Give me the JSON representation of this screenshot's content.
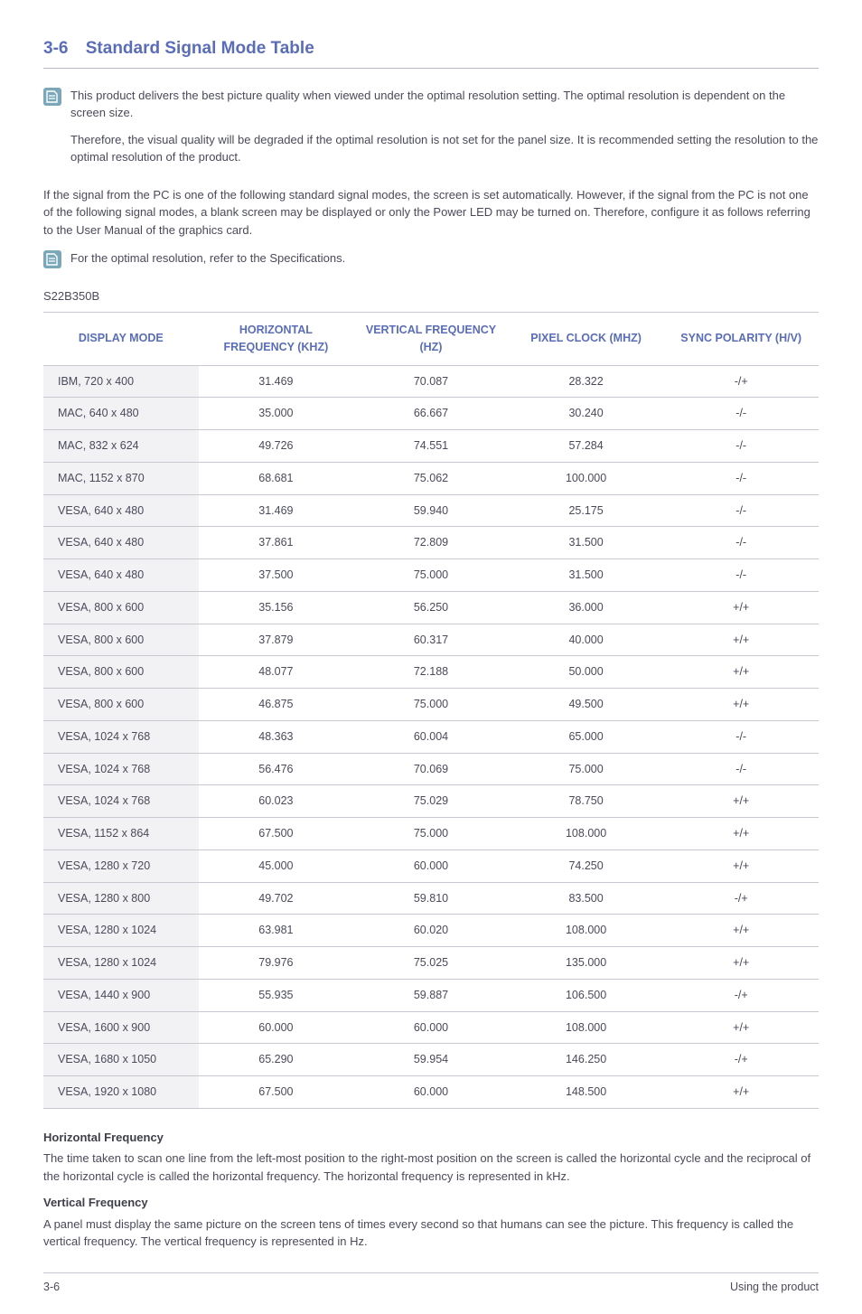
{
  "section": {
    "number": "3-6",
    "title": "Standard Signal Mode Table"
  },
  "notes": {
    "p1": "This product delivers the best picture quality when viewed under the optimal resolution setting. The optimal resolution is dependent on the screen size.",
    "p2": "Therefore, the visual quality will be degraded if the optimal resolution is not set for the panel size. It is recommended setting the resolution to the optimal resolution of the product.",
    "body": "If the signal from the PC is one of the following standard signal modes, the screen is set automatically. However, if the signal from the PC is not one of the following signal modes, a blank screen may be displayed or only the Power LED may be turned on. Therefore, configure it as follows referring to the User Manual of the graphics card.",
    "p3": "For the optimal resolution, refer to the Specifications."
  },
  "model": "S22B350B",
  "table": {
    "headers": {
      "c0": "DISPLAY MODE",
      "c1": "HORIZONTAL FREQUENCY (KHZ)",
      "c2": "VERTICAL FREQUENCY (HZ)",
      "c3": "PIXEL CLOCK (MHZ)",
      "c4": "SYNC POLARITY (H/V)"
    },
    "rows": [
      {
        "c0": "IBM, 720 x 400",
        "c1": "31.469",
        "c2": "70.087",
        "c3": "28.322",
        "c4": "-/+"
      },
      {
        "c0": "MAC, 640 x 480",
        "c1": "35.000",
        "c2": "66.667",
        "c3": "30.240",
        "c4": "-/-"
      },
      {
        "c0": "MAC, 832 x 624",
        "c1": "49.726",
        "c2": "74.551",
        "c3": "57.284",
        "c4": "-/-"
      },
      {
        "c0": "MAC, 1152 x 870",
        "c1": "68.681",
        "c2": "75.062",
        "c3": "100.000",
        "c4": "-/-"
      },
      {
        "c0": "VESA, 640 x 480",
        "c1": "31.469",
        "c2": "59.940",
        "c3": "25.175",
        "c4": "-/-"
      },
      {
        "c0": "VESA, 640 x 480",
        "c1": "37.861",
        "c2": "72.809",
        "c3": "31.500",
        "c4": "-/-"
      },
      {
        "c0": "VESA, 640 x 480",
        "c1": "37.500",
        "c2": "75.000",
        "c3": "31.500",
        "c4": "-/-"
      },
      {
        "c0": "VESA, 800 x 600",
        "c1": "35.156",
        "c2": "56.250",
        "c3": "36.000",
        "c4": "+/+"
      },
      {
        "c0": "VESA, 800 x 600",
        "c1": "37.879",
        "c2": "60.317",
        "c3": "40.000",
        "c4": "+/+"
      },
      {
        "c0": "VESA, 800 x 600",
        "c1": "48.077",
        "c2": "72.188",
        "c3": "50.000",
        "c4": "+/+"
      },
      {
        "c0": "VESA, 800 x 600",
        "c1": "46.875",
        "c2": "75.000",
        "c3": "49.500",
        "c4": "+/+"
      },
      {
        "c0": "VESA, 1024 x 768",
        "c1": "48.363",
        "c2": "60.004",
        "c3": "65.000",
        "c4": "-/-"
      },
      {
        "c0": "VESA, 1024 x 768",
        "c1": "56.476",
        "c2": "70.069",
        "c3": "75.000",
        "c4": "-/-"
      },
      {
        "c0": "VESA, 1024 x 768",
        "c1": "60.023",
        "c2": "75.029",
        "c3": "78.750",
        "c4": "+/+"
      },
      {
        "c0": "VESA, 1152 x 864",
        "c1": "67.500",
        "c2": "75.000",
        "c3": "108.000",
        "c4": "+/+"
      },
      {
        "c0": "VESA, 1280 x 720",
        "c1": "45.000",
        "c2": "60.000",
        "c3": "74.250",
        "c4": "+/+"
      },
      {
        "c0": "VESA, 1280 x 800",
        "c1": "49.702",
        "c2": "59.810",
        "c3": "83.500",
        "c4": "-/+"
      },
      {
        "c0": "VESA, 1280 x 1024",
        "c1": "63.981",
        "c2": "60.020",
        "c3": "108.000",
        "c4": "+/+"
      },
      {
        "c0": "VESA, 1280 x 1024",
        "c1": "79.976",
        "c2": "75.025",
        "c3": "135.000",
        "c4": "+/+"
      },
      {
        "c0": "VESA, 1440 x 900",
        "c1": "55.935",
        "c2": "59.887",
        "c3": "106.500",
        "c4": "-/+"
      },
      {
        "c0": "VESA, 1600 x 900",
        "c1": "60.000",
        "c2": "60.000",
        "c3": "108.000",
        "c4": "+/+"
      },
      {
        "c0": "VESA, 1680 x 1050",
        "c1": "65.290",
        "c2": "59.954",
        "c3": "146.250",
        "c4": "-/+"
      },
      {
        "c0": "VESA, 1920 x 1080",
        "c1": "67.500",
        "c2": "60.000",
        "c3": "148.500",
        "c4": "+/+"
      }
    ]
  },
  "definitions": {
    "hf_title": "Horizontal Frequency",
    "hf_text": "The time taken to scan one line from the left-most position to the right-most position on the screen is called the horizontal cycle and the reciprocal of the horizontal cycle is called the horizontal frequency. The horizontal frequency is represented in kHz.",
    "vf_title": "Vertical Frequency",
    "vf_text": "A panel must display the same picture on the screen tens of times every second so that humans can see the picture. This frequency is called the vertical frequency. The vertical frequency is represented in Hz."
  },
  "footer": {
    "left": "3-6",
    "right": "Using the product"
  },
  "colors": {
    "accent": "#5a6db8",
    "text": "#4a4a5a",
    "border": "#c8c8d0",
    "row_shade": "#f2f2f4",
    "icon_bg": "#7aa8b8"
  }
}
